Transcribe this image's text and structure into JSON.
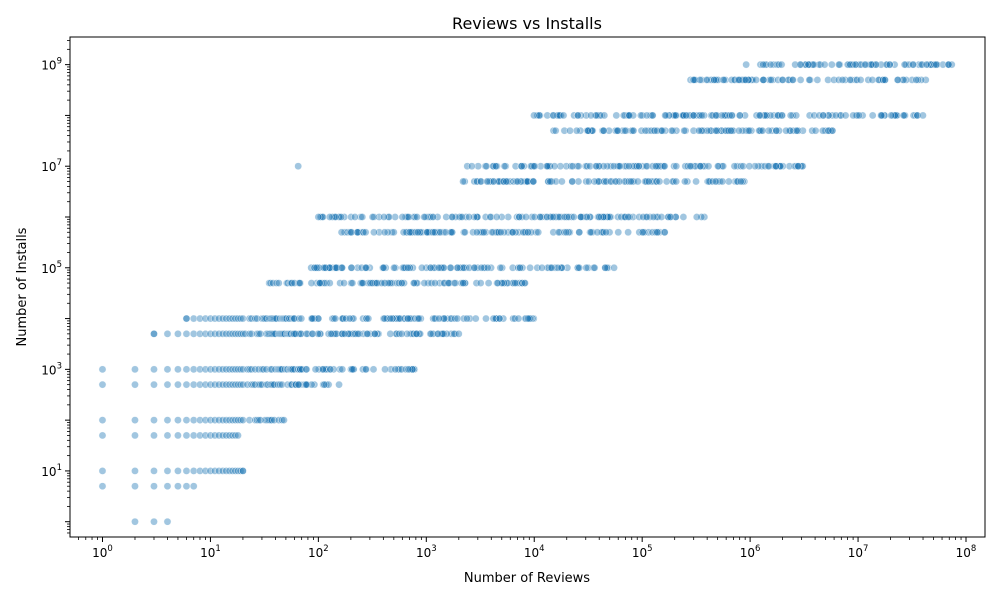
{
  "chart_data": {
    "type": "scatter",
    "title": "Reviews vs Installs",
    "xlabel": "Number of Reviews",
    "ylabel": "Number of Installs",
    "xscale": "log",
    "yscale": "log",
    "xlim": [
      0.5,
      150000000
    ],
    "ylim": [
      0.5,
      3500000000
    ],
    "grid": false,
    "color": "#1f77b4",
    "x_major_ticks": [
      {
        "value": 1,
        "mantissa": "10",
        "exp": "0"
      },
      {
        "value": 10,
        "mantissa": "10",
        "exp": "1"
      },
      {
        "value": 100,
        "mantissa": "10",
        "exp": "2"
      },
      {
        "value": 1000,
        "mantissa": "10",
        "exp": "3"
      },
      {
        "value": 10000,
        "mantissa": "10",
        "exp": "4"
      },
      {
        "value": 100000,
        "mantissa": "10",
        "exp": "5"
      },
      {
        "value": 1000000,
        "mantissa": "10",
        "exp": "6"
      },
      {
        "value": 10000000,
        "mantissa": "10",
        "exp": "7"
      },
      {
        "value": 100000000,
        "mantissa": "10",
        "exp": "8"
      }
    ],
    "y_major_ticks": [
      {
        "value": 10,
        "mantissa": "10",
        "exp": "1"
      },
      {
        "value": 1000,
        "mantissa": "10",
        "exp": "3"
      },
      {
        "value": 100000,
        "mantissa": "10",
        "exp": "5"
      },
      {
        "value": 10000000,
        "mantissa": "10",
        "exp": "7"
      },
      {
        "value": 1000000000,
        "mantissa": "10",
        "exp": "9"
      }
    ],
    "install_levels": [
      {
        "installs": 1,
        "review_range": [
          2,
          4
        ]
      },
      {
        "installs": 5,
        "review_range": [
          1,
          7
        ]
      },
      {
        "installs": 10,
        "review_range": [
          1,
          20
        ]
      },
      {
        "installs": 50,
        "review_range": [
          1,
          18
        ]
      },
      {
        "installs": 100,
        "review_range": [
          1,
          50
        ]
      },
      {
        "installs": 500,
        "review_range": [
          1,
          160
        ]
      },
      {
        "installs": 1000,
        "review_range": [
          1,
          800
        ]
      },
      {
        "installs": 5000,
        "review_range": [
          3,
          2000
        ]
      },
      {
        "installs": 10000,
        "review_range": [
          6,
          10000
        ]
      },
      {
        "installs": 50000,
        "review_range": [
          35,
          9000
        ]
      },
      {
        "installs": 100000,
        "review_range": [
          85,
          60000
        ]
      },
      {
        "installs": 500000,
        "review_range": [
          150,
          170000
        ]
      },
      {
        "installs": 1000000,
        "review_range": [
          100,
          380000
        ]
      },
      {
        "installs": 5000000,
        "review_range": [
          2100,
          900000
        ]
      },
      {
        "installs": 10000000,
        "review_range": [
          2300,
          3100000
        ]
      },
      {
        "installs": 50000000,
        "review_range": [
          15000,
          5800000
        ]
      },
      {
        "installs": 100000000,
        "review_range": [
          9500,
          45000000
        ]
      },
      {
        "installs": 500000000,
        "review_range": [
          280000,
          45000000
        ]
      },
      {
        "installs": 1000000000,
        "review_range": [
          880000,
          80000000
        ]
      }
    ],
    "outliers": [
      {
        "x": 65,
        "y": 10000000
      },
      {
        "x": 100,
        "y": 1000000
      },
      {
        "x": 2000,
        "y": 5000
      },
      {
        "x": 20,
        "y": 10
      },
      {
        "x": 6,
        "y": 10000
      },
      {
        "x": 3,
        "y": 5000
      }
    ]
  }
}
